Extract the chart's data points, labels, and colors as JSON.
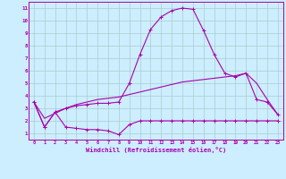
{
  "title": "",
  "xlabel": "Windchill (Refroidissement éolien,°C)",
  "ylabel": "",
  "bg_color": "#cceeff",
  "line_color": "#aa00aa",
  "grid_color": "#aacccc",
  "xlim": [
    -0.5,
    23.5
  ],
  "ylim": [
    0.5,
    11.5
  ],
  "xticks": [
    0,
    1,
    2,
    3,
    4,
    5,
    6,
    7,
    8,
    9,
    10,
    11,
    12,
    13,
    14,
    15,
    16,
    17,
    18,
    19,
    20,
    21,
    22,
    23
  ],
  "yticks": [
    1,
    2,
    3,
    4,
    5,
    6,
    7,
    8,
    9,
    10,
    11
  ],
  "hours": [
    0,
    1,
    2,
    3,
    4,
    5,
    6,
    7,
    8,
    9,
    10,
    11,
    12,
    13,
    14,
    15,
    16,
    17,
    18,
    19,
    20,
    21,
    22,
    23
  ],
  "line1_y": [
    3.5,
    1.5,
    2.7,
    1.5,
    1.4,
    1.3,
    1.3,
    1.2,
    0.9,
    1.7,
    2.0,
    2.0,
    2.0,
    2.0,
    2.0,
    2.0,
    2.0,
    2.0,
    2.0,
    2.0,
    2.0,
    2.0,
    2.0,
    2.0
  ],
  "line2_y": [
    3.5,
    1.5,
    2.7,
    3.0,
    3.2,
    3.3,
    3.4,
    3.4,
    3.5,
    5.0,
    7.3,
    9.3,
    10.3,
    10.8,
    11.0,
    10.9,
    9.2,
    7.3,
    5.8,
    5.5,
    5.8,
    3.7,
    3.5,
    2.5
  ],
  "line3_y": [
    3.5,
    2.2,
    2.6,
    3.0,
    3.3,
    3.5,
    3.7,
    3.8,
    3.9,
    4.1,
    4.3,
    4.5,
    4.7,
    4.9,
    5.1,
    5.2,
    5.3,
    5.4,
    5.5,
    5.6,
    5.8,
    5.0,
    3.7,
    2.5
  ]
}
